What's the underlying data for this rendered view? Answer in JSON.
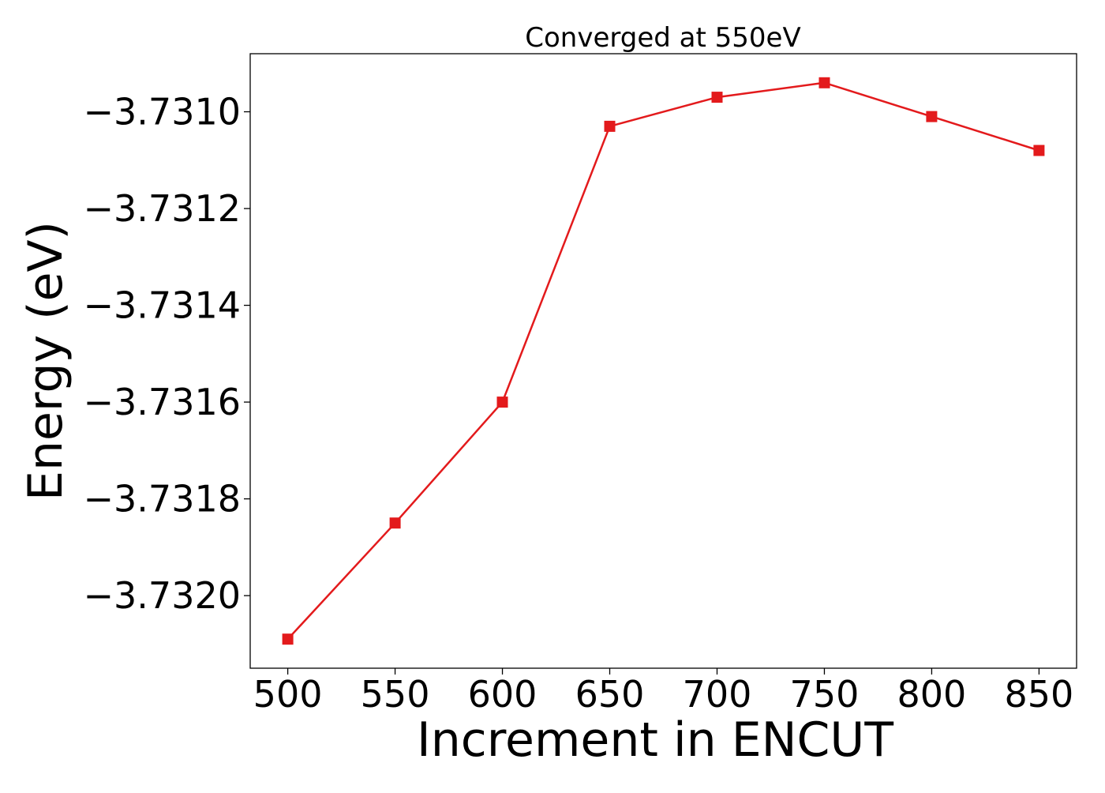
{
  "chart_data": {
    "type": "line",
    "title": "Converged at 550eV",
    "xlabel": "Increment in ENCUT",
    "ylabel": "Energy (eV)",
    "x": [
      500,
      550,
      600,
      650,
      700,
      750,
      800,
      850
    ],
    "series": [
      {
        "values": [
          -3.73209,
          -3.73185,
          -3.7316,
          -3.73103,
          -3.73097,
          -3.73094,
          -3.73101,
          -3.73108
        ],
        "color": "#e31a1c",
        "marker": "square"
      }
    ],
    "xticks": [
      500,
      550,
      600,
      650,
      700,
      750,
      800,
      850
    ],
    "xtick_labels": [
      "500",
      "550",
      "600",
      "650",
      "700",
      "750",
      "800",
      "850"
    ],
    "yticks": [
      -3.732,
      -3.7318,
      -3.7316,
      -3.7314,
      -3.7312,
      -3.731
    ],
    "ytick_labels": [
      "−3.7320",
      "−3.7318",
      "−3.7316",
      "−3.7314",
      "−3.7312",
      "−3.7310"
    ],
    "xlim": [
      482.5,
      867.5
    ],
    "ylim": [
      -3.73215,
      -3.73088
    ],
    "grid": false,
    "legend": "none"
  }
}
